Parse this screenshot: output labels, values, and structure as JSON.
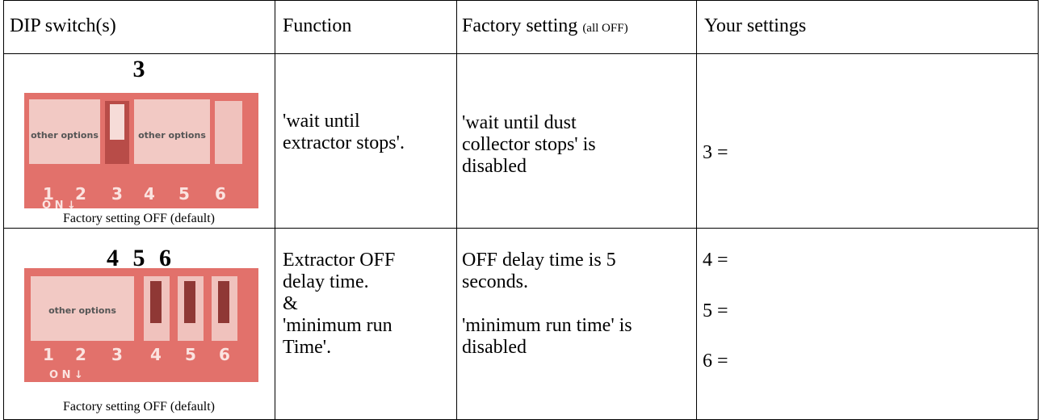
{
  "table": {
    "header": {
      "dip": "DIP switch(s)",
      "function": "Function",
      "factory": "Factory setting",
      "factory_note": "(all OFF)",
      "yours": "Your settings"
    },
    "rows": [
      {
        "switches": "3",
        "image": {
          "blocks": [
            "other options",
            "other options"
          ],
          "numbers": [
            "1",
            "2",
            "3",
            "4",
            "5",
            "6"
          ],
          "on": "O N ↓"
        },
        "caption": "Factory setting OFF (default)",
        "function": [
          "'wait until",
          "extractor stops'."
        ],
        "factory": [
          [
            "'wait until dust",
            "collector stops' is",
            "disabled"
          ]
        ],
        "yours": [
          "3 ="
        ]
      },
      {
        "switches": "4 5 6",
        "image": {
          "blocks": [
            "other options"
          ],
          "numbers": [
            "1",
            "2",
            "3",
            "4",
            "5",
            "6"
          ],
          "on": "O N ↓"
        },
        "caption": "Factory setting OFF (default)",
        "function": [
          "Extractor OFF",
          "delay time.",
          "&",
          "'minimum run",
          "Time'."
        ],
        "factory": [
          [
            "OFF delay time is 5",
            "seconds."
          ],
          [
            "'minimum run time' is",
            "disabled"
          ]
        ],
        "yours": [
          "4 =",
          "5 =",
          "6 ="
        ]
      }
    ]
  }
}
